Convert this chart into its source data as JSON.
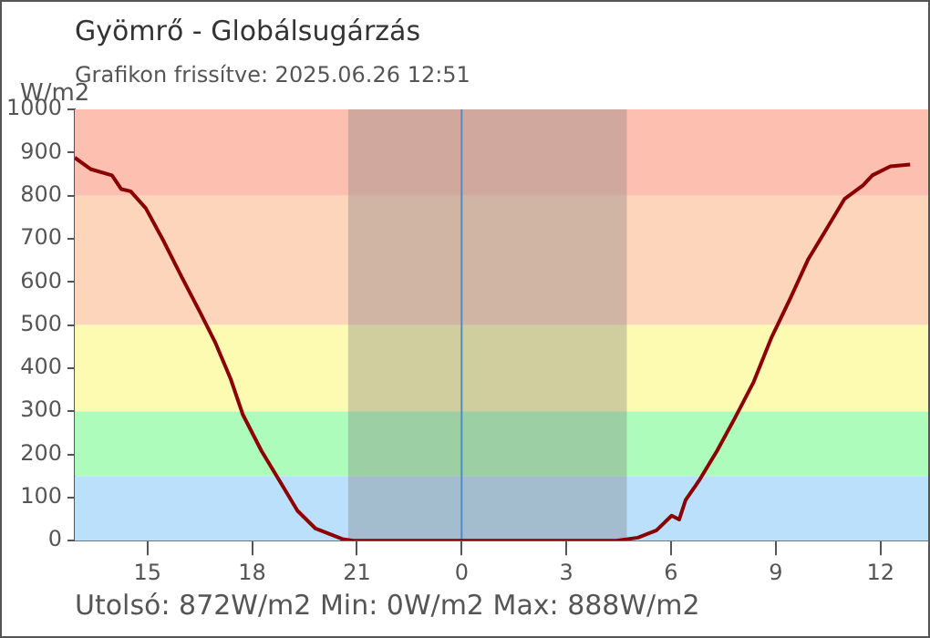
{
  "chart_data": {
    "type": "line",
    "title": "Gyömrő - Globálsugárzás",
    "subtitle": "Grafikon frissítve: 2025.06.26 12:51",
    "ylabel": "W/m2",
    "annotations": [
      "Utolsó: 872W/m2  Min: 0W/m2  Max: 888W/m2"
    ],
    "series": [
      {
        "color": "#8b0000",
        "x": [
          "2025-06-25T12:55",
          "2025-06-25T13:23",
          "2025-06-25T13:59",
          "2025-06-25T14:15",
          "2025-06-25T14:31",
          "2025-06-25T14:57",
          "2025-06-25T15:28",
          "2025-06-25T15:59",
          "2025-06-25T16:31",
          "2025-06-25T16:57",
          "2025-06-25T17:23",
          "2025-06-25T17:44",
          "2025-06-25T18:16",
          "2025-06-25T18:47",
          "2025-06-25T19:18",
          "2025-06-25T19:49",
          "2025-06-25T20:16",
          "2025-06-25T20:37",
          "2025-06-25T20:54",
          "2025-06-26T00:00",
          "2025-06-26T04:26",
          "2025-06-26T05:03",
          "2025-06-26T05:35",
          "2025-06-26T06:01",
          "2025-06-26T06:14",
          "2025-06-26T06:25",
          "2025-06-26T06:48",
          "2025-06-26T07:19",
          "2025-06-26T07:50",
          "2025-06-26T08:22",
          "2025-06-26T08:53",
          "2025-06-26T09:25",
          "2025-06-26T09:56",
          "2025-06-26T10:27",
          "2025-06-26T10:58",
          "2025-06-26T11:30",
          "2025-06-26T11:46",
          "2025-06-26T12:17",
          "2025-06-26T12:51"
        ],
        "values": [
          888,
          861,
          847,
          815,
          810,
          771,
          694,
          611,
          528,
          458,
          375,
          292,
          208,
          139,
          69,
          28,
          14,
          3,
          0,
          0,
          0,
          7,
          24,
          58,
          49,
          94,
          139,
          208,
          285,
          368,
          472,
          562,
          653,
          722,
          792,
          824,
          847,
          868,
          872
        ]
      }
    ],
    "xlim": [
      "2025-06-25T12:55",
      "2025-06-26T13:22"
    ],
    "xticks": [
      {
        "value": "2025-06-25T15:00",
        "label": "15"
      },
      {
        "value": "2025-06-25T18:00",
        "label": "18"
      },
      {
        "value": "2025-06-25T21:00",
        "label": "21"
      },
      {
        "value": "2025-06-26T00:00",
        "label": "0"
      },
      {
        "value": "2025-06-26T03:00",
        "label": "3"
      },
      {
        "value": "2025-06-26T06:00",
        "label": "6"
      },
      {
        "value": "2025-06-26T09:00",
        "label": "9"
      },
      {
        "value": "2025-06-26T12:00",
        "label": "12"
      }
    ],
    "ylim": [
      0,
      1000
    ],
    "yticks": [
      0,
      100,
      200,
      300,
      400,
      500,
      600,
      700,
      800,
      900,
      1000
    ],
    "grid": false,
    "legend": false,
    "marker": "none",
    "line_style": "solid",
    "bands": [
      {
        "axis": "y",
        "from": 0,
        "to": 150,
        "color": "#bae0fb"
      },
      {
        "axis": "y",
        "from": 150,
        "to": 300,
        "color": "#aefcbb"
      },
      {
        "axis": "y",
        "from": 300,
        "to": 500,
        "color": "#fdfbb2"
      },
      {
        "axis": "y",
        "from": 500,
        "to": 800,
        "color": "#fdd5bb"
      },
      {
        "axis": "y",
        "from": 800,
        "to": 1000,
        "color": "#fdc0b0"
      },
      {
        "axis": "x",
        "from": "2025-06-25T20:45",
        "to": "2025-06-26T04:44",
        "color": "#7a7a7a"
      }
    ],
    "ref_lines": [
      {
        "axis": "x",
        "value": "2025-06-26T00:00",
        "color": "#4a90c8"
      }
    ]
  }
}
